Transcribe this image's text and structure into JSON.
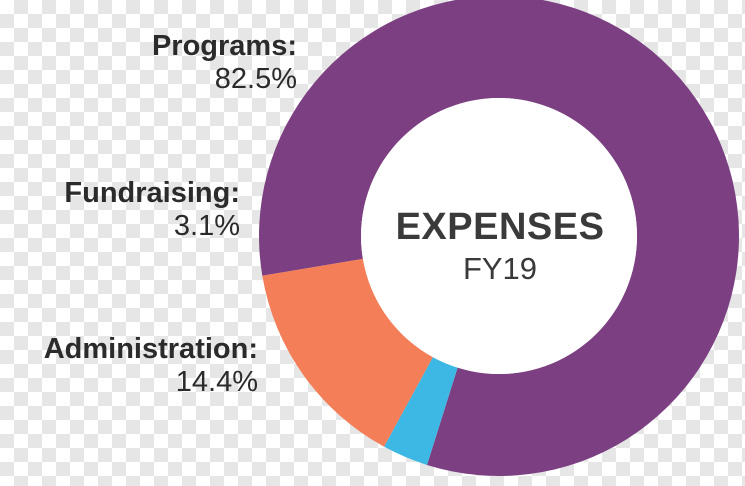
{
  "chart_data": {
    "type": "pie",
    "style": "donut",
    "center_label": "EXPENSES",
    "center_sublabel": "FY19",
    "slices": [
      {
        "name": "Programs:",
        "value": 82.5,
        "label": "82.5%",
        "color": "#7b3f82"
      },
      {
        "name": "Fundraising:",
        "value": 3.1,
        "label": "3.1%",
        "color": "#3db8e4"
      },
      {
        "name": "Administration:",
        "value": 14.4,
        "label": "14.4%",
        "color": "#f47e58"
      }
    ]
  }
}
